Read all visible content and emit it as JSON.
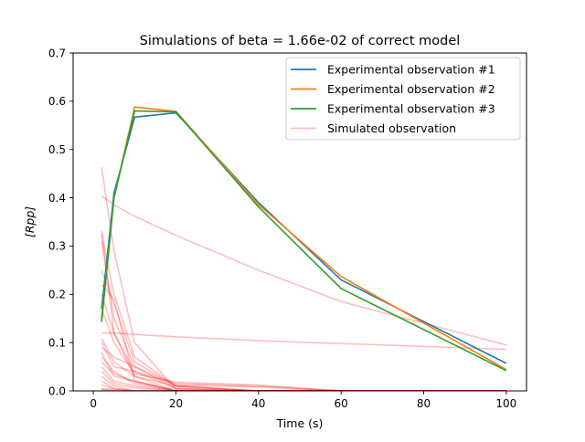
{
  "chart_data": {
    "type": "line",
    "title": "Simulations of beta = 1.66e-02 of correct model",
    "xlabel": "Time (s)",
    "ylabel": "[Rpp]",
    "xlim": [
      -4.9,
      104.9
    ],
    "ylim": [
      0,
      0.7
    ],
    "xticks": [
      0,
      20,
      40,
      60,
      80,
      100
    ],
    "yticks": [
      0.0,
      0.1,
      0.2,
      0.3,
      0.4,
      0.5,
      0.6,
      0.7
    ],
    "xtick_labels": [
      "0",
      "20",
      "40",
      "60",
      "80",
      "100"
    ],
    "ytick_labels": [
      "0.0",
      "0.1",
      "0.2",
      "0.3",
      "0.4",
      "0.5",
      "0.6",
      "0.7"
    ],
    "grid": false,
    "legend_position": "top-right",
    "x": [
      2,
      5,
      10,
      20,
      40,
      60,
      100
    ],
    "series": [
      {
        "name": "Experimental observation #1",
        "color": "#1f77b4",
        "values": [
          0.17,
          0.41,
          0.567,
          0.576,
          0.39,
          0.23,
          0.057
        ]
      },
      {
        "name": "Experimental observation #2",
        "color": "#ff7f0e",
        "values": [
          0.15,
          0.4,
          0.588,
          0.579,
          0.386,
          0.237,
          0.044
        ]
      },
      {
        "name": "Experimental observation #3",
        "color": "#2ca02c",
        "values": [
          0.143,
          0.4,
          0.58,
          0.578,
          0.381,
          0.212,
          0.042
        ]
      }
    ],
    "simulated": {
      "name": "Simulated observation",
      "color": "#ff0000",
      "lines": [
        [
          0.463,
          0.29,
          0.1,
          0.003,
          0.0,
          0.0,
          0.0
        ],
        [
          0.404,
          0.385,
          0.362,
          0.322,
          0.25,
          0.185,
          0.095
        ],
        [
          0.332,
          0.12,
          0.04,
          0.005,
          0.0,
          0.0,
          0.0
        ],
        [
          0.325,
          0.2,
          0.07,
          0.01,
          0.0,
          0.0,
          0.0
        ],
        [
          0.31,
          0.15,
          0.05,
          0.005,
          0.0,
          0.0,
          0.0
        ],
        [
          0.25,
          0.18,
          0.06,
          0.01,
          0.0,
          0.0,
          0.0
        ],
        [
          0.22,
          0.19,
          0.02,
          0.0,
          0.0,
          0.0,
          0.0
        ],
        [
          0.2,
          0.12,
          0.03,
          0.0,
          0.0,
          0.0,
          0.0
        ],
        [
          0.17,
          0.1,
          0.035,
          0.018,
          0.012,
          0.0,
          0.0
        ],
        [
          0.12,
          0.12,
          0.117,
          0.112,
          0.104,
          0.098,
          0.086
        ],
        [
          0.108,
          0.06,
          0.03,
          0.01,
          0.0,
          0.0,
          0.0
        ],
        [
          0.1,
          0.05,
          0.04,
          0.015,
          0.01,
          0.0,
          0.0
        ],
        [
          0.09,
          0.07,
          0.05,
          0.012,
          0.008,
          0.0,
          0.0
        ],
        [
          0.08,
          0.03,
          0.02,
          0.0,
          0.0,
          0.0,
          0.0
        ],
        [
          0.07,
          0.04,
          0.015,
          0.0,
          0.0,
          0.0,
          0.0
        ],
        [
          0.06,
          0.035,
          0.02,
          0.0,
          0.0,
          0.0,
          0.0
        ],
        [
          0.05,
          0.02,
          0.01,
          0.0,
          0.0,
          0.0,
          0.0
        ],
        [
          0.04,
          0.015,
          0.006,
          0.0,
          0.0,
          0.0,
          0.0
        ],
        [
          0.03,
          0.01,
          0.0,
          0.0,
          0.0,
          0.0,
          0.0
        ],
        [
          0.02,
          0.005,
          0.0,
          0.0,
          0.0,
          0.0,
          0.0
        ],
        [
          0.012,
          0.004,
          0.0,
          0.0,
          0.0,
          0.0,
          0.0
        ],
        [
          0.005,
          0.002,
          0.0,
          0.0,
          0.0,
          0.0,
          0.0
        ],
        [
          0.003,
          0.0,
          0.0,
          0.0,
          0.0,
          0.0,
          0.0
        ],
        [
          0.001,
          0.0,
          0.0,
          0.0,
          0.0,
          0.0,
          0.0
        ]
      ]
    }
  }
}
